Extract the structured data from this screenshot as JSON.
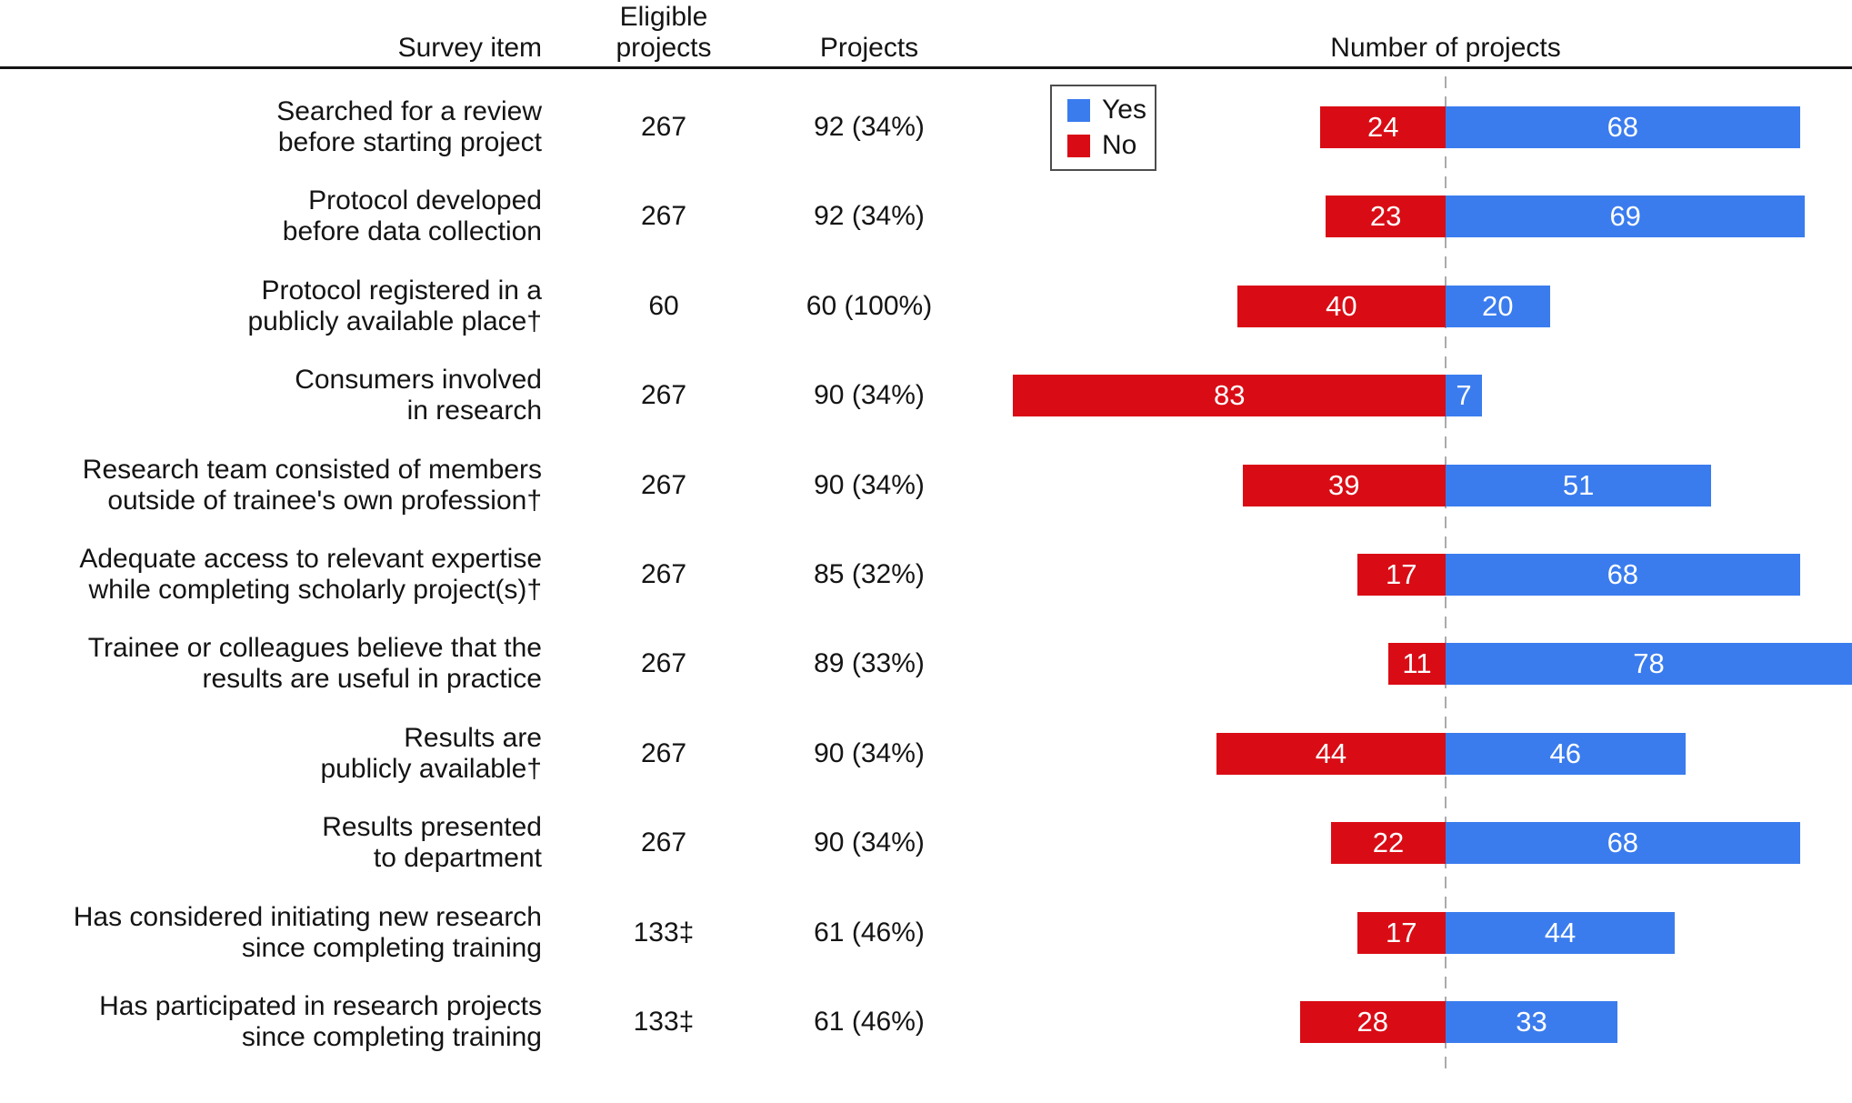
{
  "colors": {
    "yes_blue": "#3A7CEE",
    "no_red": "#D90C15",
    "dashed_gridline": "#ABABAB",
    "header_rule": "#141414",
    "text": "#141414",
    "bar_value_text": "#FFFFFF",
    "legend_border": "#4D4D4D"
  },
  "chart_data": {
    "type": "bar",
    "variant": "diverging-horizontal",
    "title": "Number of projects",
    "headers": {
      "survey_item": "Survey item",
      "eligible": [
        "Eligible",
        "projects"
      ],
      "projects": "Projects"
    },
    "legend": [
      {
        "label": "Yes",
        "series": "yes"
      },
      {
        "label": "No",
        "series": "no"
      }
    ],
    "legend_position": "top-left-of-plot",
    "axis": {
      "center_gridline": "dashed",
      "center_value_boundary": "No | Yes",
      "units": "projects"
    },
    "rows": [
      {
        "label_lines": [
          "Searched for a review",
          "before starting project"
        ],
        "eligible": "267",
        "projects": "92 (34%)",
        "no": 24,
        "yes": 68
      },
      {
        "label_lines": [
          "Protocol developed",
          "before data collection"
        ],
        "eligible": "267",
        "projects": "92 (34%)",
        "no": 23,
        "yes": 69
      },
      {
        "label_lines": [
          "Protocol registered in a",
          "publicly available place†"
        ],
        "eligible": "60",
        "projects": "60 (100%)",
        "no": 40,
        "yes": 20
      },
      {
        "label_lines": [
          "Consumers involved",
          "in research"
        ],
        "eligible": "267",
        "projects": "90 (34%)",
        "no": 83,
        "yes": 7
      },
      {
        "label_lines": [
          "Research team consisted of members",
          "outside of trainee's own profession†"
        ],
        "eligible": "267",
        "projects": "90 (34%)",
        "no": 39,
        "yes": 51
      },
      {
        "label_lines": [
          "Adequate access to relevant expertise",
          "while completing scholarly project(s)†"
        ],
        "eligible": "267",
        "projects": "85 (32%)",
        "no": 17,
        "yes": 68
      },
      {
        "label_lines": [
          "Trainee or colleagues believe that the",
          "results are useful in practice"
        ],
        "eligible": "267",
        "projects": "89 (33%)",
        "no": 11,
        "yes": 78
      },
      {
        "label_lines": [
          "Results are",
          "publicly available†"
        ],
        "eligible": "267",
        "projects": "90 (34%)",
        "no": 44,
        "yes": 46
      },
      {
        "label_lines": [
          "Results presented",
          "to department"
        ],
        "eligible": "267",
        "projects": "90 (34%)",
        "no": 22,
        "yes": 68
      },
      {
        "label_lines": [
          "Has considered initiating new research",
          "since completing training"
        ],
        "eligible": "133‡",
        "projects": "61 (46%)",
        "no": 17,
        "yes": 44
      },
      {
        "label_lines": [
          "Has participated in research projects",
          "since completing training"
        ],
        "eligible": "133‡",
        "projects": "61 (46%)",
        "no": 28,
        "yes": 33
      }
    ]
  }
}
